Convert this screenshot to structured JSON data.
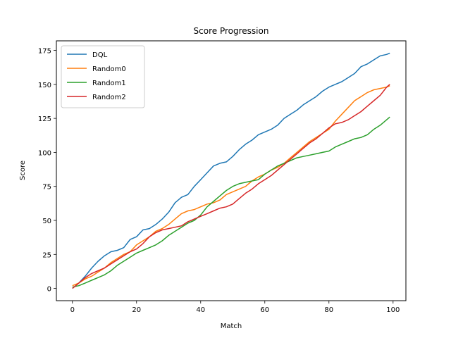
{
  "chart_data": {
    "type": "line",
    "title": "Score Progression",
    "xlabel": "Match",
    "ylabel": "Score",
    "xlim": [
      -5,
      104
    ],
    "ylim": [
      -9,
      182
    ],
    "xticks": [
      0,
      20,
      40,
      60,
      80,
      100
    ],
    "yticks": [
      0,
      25,
      50,
      75,
      100,
      125,
      150,
      175
    ],
    "grid": false,
    "legend_position": "top-left",
    "series": [
      {
        "name": "DQL",
        "color": "#1f77b4",
        "x": [
          0,
          2,
          4,
          6,
          8,
          10,
          12,
          14,
          16,
          18,
          20,
          22,
          24,
          26,
          28,
          30,
          32,
          34,
          36,
          38,
          40,
          42,
          44,
          46,
          48,
          50,
          52,
          54,
          56,
          58,
          60,
          62,
          64,
          66,
          68,
          70,
          72,
          74,
          76,
          78,
          80,
          82,
          84,
          86,
          88,
          90,
          92,
          94,
          96,
          98,
          99
        ],
        "y": [
          0,
          4,
          9,
          15,
          20,
          24,
          27,
          28,
          30,
          36,
          38,
          43,
          44,
          47,
          51,
          56,
          63,
          67,
          69,
          75,
          80,
          85,
          90,
          92,
          93,
          97,
          102,
          106,
          109,
          113,
          115,
          117,
          120,
          125,
          128,
          131,
          135,
          138,
          141,
          145,
          148,
          150,
          152,
          155,
          158,
          163,
          165,
          168,
          171,
          172,
          173
        ]
      },
      {
        "name": "Random0",
        "color": "#ff7f0e",
        "x": [
          0,
          2,
          4,
          6,
          8,
          10,
          12,
          14,
          16,
          18,
          20,
          22,
          24,
          26,
          28,
          30,
          32,
          34,
          36,
          38,
          40,
          42,
          44,
          46,
          48,
          50,
          52,
          54,
          56,
          58,
          60,
          62,
          64,
          66,
          68,
          70,
          72,
          74,
          76,
          78,
          80,
          82,
          84,
          86,
          88,
          90,
          92,
          94,
          96,
          98,
          99
        ],
        "y": [
          2,
          4,
          7,
          9,
          12,
          15,
          19,
          22,
          25,
          27,
          32,
          35,
          38,
          42,
          44,
          47,
          51,
          55,
          57,
          58,
          60,
          62,
          63,
          65,
          69,
          71,
          73,
          75,
          79,
          82,
          84,
          87,
          89,
          92,
          96,
          100,
          104,
          108,
          111,
          114,
          117,
          123,
          128,
          133,
          138,
          141,
          144,
          146,
          147,
          148,
          149
        ]
      },
      {
        "name": "Random1",
        "color": "#2ca02c",
        "x": [
          0,
          2,
          4,
          6,
          8,
          10,
          12,
          14,
          16,
          18,
          20,
          22,
          24,
          26,
          28,
          30,
          32,
          34,
          36,
          38,
          40,
          42,
          44,
          46,
          48,
          50,
          52,
          54,
          56,
          58,
          60,
          62,
          64,
          66,
          68,
          70,
          72,
          74,
          76,
          78,
          80,
          82,
          84,
          86,
          88,
          90,
          92,
          94,
          96,
          98,
          99
        ],
        "y": [
          1,
          2,
          4,
          6,
          8,
          10,
          13,
          17,
          20,
          23,
          26,
          28,
          30,
          32,
          35,
          39,
          42,
          45,
          48,
          50,
          54,
          60,
          64,
          68,
          72,
          75,
          77,
          78,
          79,
          80,
          84,
          87,
          90,
          92,
          94,
          96,
          97,
          98,
          99,
          100,
          101,
          104,
          106,
          108,
          110,
          111,
          113,
          117,
          120,
          124,
          126
        ]
      },
      {
        "name": "Random2",
        "color": "#d62728",
        "x": [
          0,
          2,
          4,
          6,
          8,
          10,
          12,
          14,
          16,
          18,
          20,
          22,
          24,
          26,
          28,
          30,
          32,
          34,
          36,
          38,
          40,
          42,
          44,
          46,
          48,
          50,
          52,
          54,
          56,
          58,
          60,
          62,
          64,
          66,
          68,
          70,
          72,
          74,
          76,
          78,
          80,
          82,
          84,
          86,
          88,
          90,
          92,
          94,
          96,
          98,
          99
        ],
        "y": [
          0,
          4,
          8,
          11,
          13,
          15,
          18,
          21,
          24,
          27,
          29,
          33,
          38,
          41,
          43,
          44,
          45,
          46,
          49,
          51,
          53,
          55,
          57,
          59,
          60,
          62,
          66,
          70,
          73,
          77,
          80,
          83,
          87,
          91,
          95,
          99,
          103,
          107,
          110,
          114,
          118,
          121,
          122,
          124,
          127,
          130,
          134,
          138,
          142,
          148,
          150
        ]
      }
    ]
  }
}
